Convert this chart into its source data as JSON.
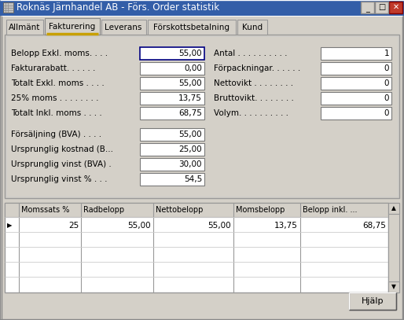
{
  "title": "Roknäs Järnhandel AB - Förs. Order statistik",
  "tabs": [
    "Allmänt",
    "Fakturering",
    "Leverans",
    "Förskottsbetalning",
    "Kund"
  ],
  "active_tab": 1,
  "left_fields": [
    {
      "label": "Belopp Exkl. moms. . . .",
      "value": "55,00",
      "active": true
    },
    {
      "label": "Fakturarabatt. . . . . .",
      "value": "0,00",
      "active": false
    },
    {
      "label": "Totalt Exkl. moms . . . .",
      "value": "55,00",
      "active": false
    },
    {
      "label": "25% moms . . . . . . . .",
      "value": "13,75",
      "active": false
    },
    {
      "label": "Totalt Inkl. moms . . . .",
      "value": "68,75",
      "active": false
    },
    {
      "label": "Försäljning (BVA) . . . .",
      "value": "55,00",
      "active": false
    },
    {
      "label": "Ursprunglig kostnad (B...",
      "value": "25,00",
      "active": false
    },
    {
      "label": "Ursprunglig vinst (BVA) .",
      "value": "30,00",
      "active": false
    },
    {
      "label": "Ursprunglig vinst % . . .",
      "value": "54,5",
      "active": false
    }
  ],
  "right_fields": [
    {
      "label": "Antal . . . . . . . . . .",
      "value": "1"
    },
    {
      "label": "Förpackningar. . . . . .",
      "value": "0"
    },
    {
      "label": "Nettovikt . . . . . . . .",
      "value": "0"
    },
    {
      "label": "Bruttovikt. . . . . . . .",
      "value": "0"
    },
    {
      "label": "Volym. . . . . . . . . .",
      "value": "0"
    }
  ],
  "table_headers": [
    "Momssats %",
    "Radbelopp",
    "Nettobelopp",
    "Momsbelopp",
    "Belopp inkl. ..."
  ],
  "table_row": [
    "25",
    "55,00",
    "55,00",
    "13,75",
    "68,75"
  ],
  "button_label": "Hjälp",
  "bg_color": "#d4d0c8",
  "titlebar_bg": "#335ea8",
  "titlebar_text": "#ffffff",
  "field_bg": "#ffffff",
  "tab_active_color": "#ffd700"
}
